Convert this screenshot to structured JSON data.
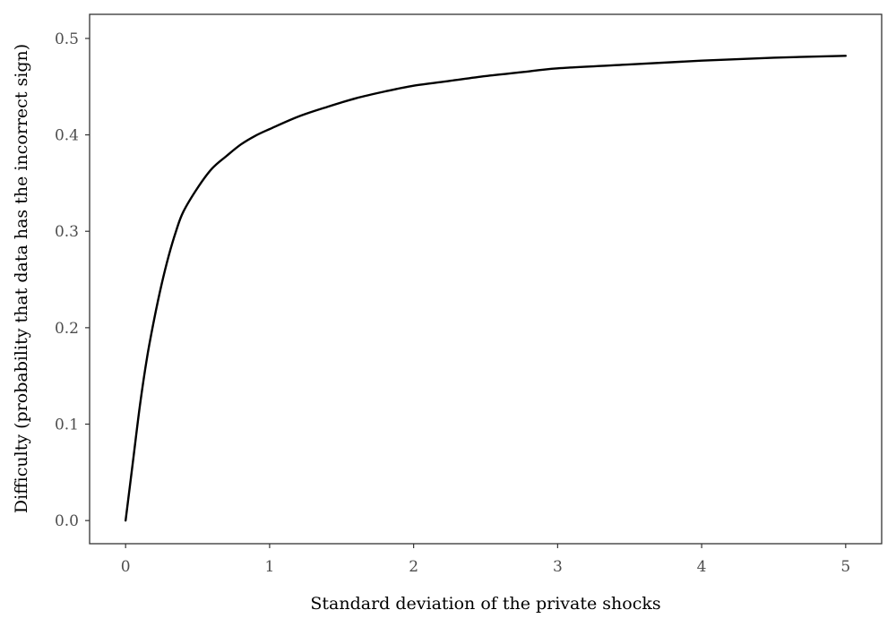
{
  "chart_data": {
    "type": "line",
    "title": "",
    "xlabel": "Standard deviation of the private shocks",
    "ylabel": "Difficulty (probability that data has the incorrect sign)",
    "xlim": [
      -0.25,
      5.25
    ],
    "ylim": [
      -0.024,
      0.525
    ],
    "x_ticks": [
      0,
      1,
      2,
      3,
      4,
      5
    ],
    "y_ticks": [
      0.0,
      0.1,
      0.2,
      0.3,
      0.4,
      0.5
    ],
    "x_tick_labels": [
      "0",
      "1",
      "2",
      "3",
      "4",
      "5"
    ],
    "y_tick_labels": [
      "0.0",
      "0.1",
      "0.2",
      "0.3",
      "0.4",
      "0.5"
    ],
    "grid": false,
    "legend": "none",
    "line_color": "#000000",
    "series": [
      {
        "x": [
          0,
          0.05,
          0.1,
          0.15,
          0.2,
          0.25,
          0.3,
          0.35,
          0.4,
          0.5,
          0.6,
          0.7,
          0.8,
          0.9,
          1.0,
          1.2,
          1.4,
          1.6,
          1.8,
          2.0,
          2.25,
          2.5,
          2.75,
          3.0,
          3.5,
          4.0,
          4.5,
          5.0
        ],
        "y": [
          0.0,
          0.06,
          0.12,
          0.17,
          0.21,
          0.245,
          0.275,
          0.3,
          0.32,
          0.345,
          0.365,
          0.378,
          0.39,
          0.399,
          0.406,
          0.419,
          0.429,
          0.438,
          0.445,
          0.451,
          0.456,
          0.461,
          0.465,
          0.469,
          0.473,
          0.477,
          0.48,
          0.482
        ]
      }
    ]
  }
}
